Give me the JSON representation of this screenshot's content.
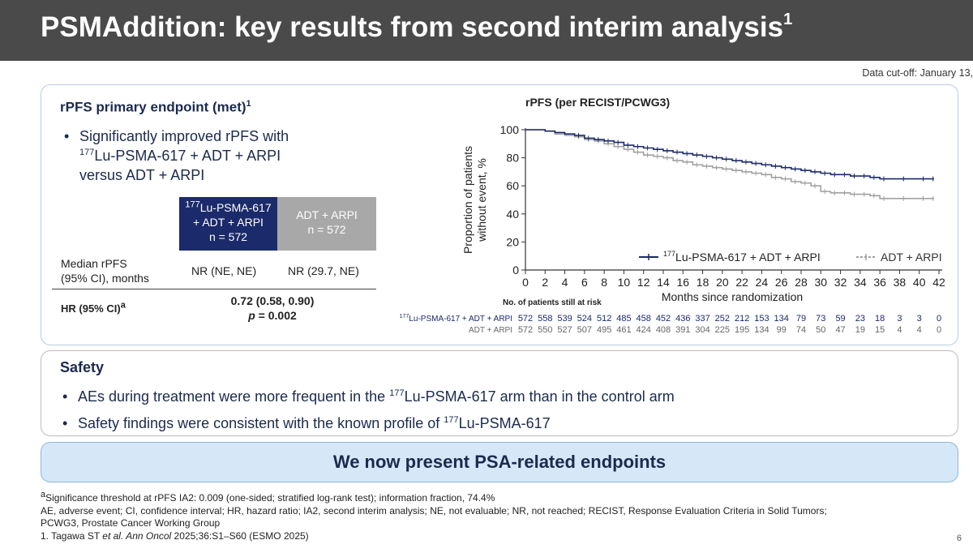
{
  "slide": {
    "title": "PSMAddition: key results from second interim analysis",
    "title_sup": "1",
    "data_cutoff": "Data cut-off: January 13,",
    "page_number": "6"
  },
  "rpfs": {
    "heading": "rPFS primary endpoint (met)",
    "heading_sup": "1",
    "bullet_line1": "Significantly improved rPFS with",
    "bullet_line2_sup": "177",
    "bullet_line2": "Lu-PSMA-617 + ADT + ARPI",
    "bullet_line3": "versus ADT + ARPI"
  },
  "table": {
    "arm1_sup": "177",
    "arm1_line1": "Lu-PSMA-617",
    "arm1_line2": "+ ADT + ARPI",
    "arm1_line3": "n = 572",
    "arm2_line1": "ADT + ARPI",
    "arm2_line2": "n = 572",
    "row1_label1": "Median rPFS",
    "row1_label2": "(95% CI), months",
    "row1_arm1": "NR (NE, NE)",
    "row1_arm2": "NR (29.7, NE)",
    "row2_label": "HR (95% CI)",
    "row2_label_sup": "a",
    "hr_value": "0.72 (0.58, 0.90)",
    "p_label": "p",
    "p_value": " = 0.002"
  },
  "chart_data": {
    "type": "line",
    "title": "rPFS (per RECIST/PCWG3)",
    "xlabel": "Months since randomization",
    "ylabel_line1": "Proportion of patients",
    "ylabel_line2": "without event, %",
    "xlim": [
      0,
      42
    ],
    "ylim": [
      0,
      100
    ],
    "xticks": [
      "0",
      "2",
      "4",
      "6",
      "8",
      "10",
      "12",
      "14",
      "16",
      "18",
      "20",
      "22",
      "24",
      "26",
      "28",
      "30",
      "32",
      "34",
      "36",
      "38",
      "40",
      "42"
    ],
    "yticks": [
      "0",
      "20",
      "40",
      "60",
      "80",
      "100"
    ],
    "legend_position": "bottom-right",
    "series": [
      {
        "name_sup": "177",
        "name": "Lu-PSMA-617 + ADT + ARPI",
        "color": "#1b2a6a",
        "x": [
          0,
          2,
          3,
          4,
          5,
          6,
          7,
          8,
          9,
          10,
          11,
          12,
          13,
          14,
          15,
          16,
          17,
          18,
          19,
          20,
          21,
          22,
          23,
          24,
          25,
          26,
          27,
          28,
          29,
          30,
          31,
          32,
          33,
          34,
          35,
          36,
          38,
          40,
          41
        ],
        "y": [
          100,
          99,
          98,
          97,
          96,
          94,
          93,
          92,
          91,
          89,
          88,
          87,
          86,
          85,
          84,
          83,
          82,
          81,
          80,
          79,
          78,
          77,
          76,
          75,
          74,
          73,
          72,
          71,
          70,
          69,
          68,
          68,
          67,
          67,
          66,
          65,
          65,
          65,
          65
        ]
      },
      {
        "name": "ADT + ARPI",
        "color": "#a0a0a0",
        "x": [
          0,
          2,
          3,
          4,
          5,
          6,
          7,
          8,
          9,
          10,
          11,
          12,
          13,
          14,
          15,
          16,
          17,
          18,
          19,
          20,
          21,
          22,
          23,
          24,
          25,
          26,
          27,
          28,
          29,
          30,
          31,
          32,
          33,
          34,
          35,
          36,
          38,
          40,
          41
        ],
        "y": [
          100,
          99,
          97,
          96,
          95,
          93,
          92,
          90,
          88,
          86,
          84,
          82,
          81,
          80,
          78,
          77,
          75,
          74,
          73,
          72,
          71,
          70,
          69,
          68,
          66,
          65,
          63,
          62,
          60,
          56,
          55,
          55,
          54,
          54,
          53,
          51,
          51,
          51,
          51
        ]
      }
    ],
    "risk_table": {
      "title": "No. of patients still at risk",
      "rows": [
        {
          "label_sup": "177",
          "label": "Lu-PSMA-617 + ADT + ARPI",
          "color": "#1b2a6a",
          "values": [
            "572",
            "558",
            "539",
            "524",
            "512",
            "485",
            "458",
            "452",
            "436",
            "337",
            "252",
            "212",
            "153",
            "134",
            "79",
            "73",
            "59",
            "23",
            "18",
            "3",
            "3",
            "0"
          ]
        },
        {
          "label": "ADT + ARPI",
          "color": "#666666",
          "values": [
            "572",
            "550",
            "527",
            "507",
            "495",
            "461",
            "424",
            "408",
            "391",
            "304",
            "225",
            "195",
            "134",
            "99",
            "74",
            "50",
            "47",
            "19",
            "15",
            "4",
            "4",
            "0"
          ]
        }
      ]
    }
  },
  "safety": {
    "heading": "Safety",
    "bullet1_pre": "AEs during treatment were more frequent in the ",
    "bullet1_sup": "177",
    "bullet1_post": "Lu-PSMA-617 arm than in the control arm",
    "bullet2_pre": "Safety findings were consistent with the known profile of ",
    "bullet2_sup": "177",
    "bullet2_post": "Lu-PSMA-617"
  },
  "banner": {
    "text": "We now present PSA-related endpoints"
  },
  "footnotes": {
    "a_sup": "a",
    "a_text": "Significance threshold at rPFS IA2: 0.009 (one-sided; stratified log-rank test); information fraction, 74.4%",
    "abbrev1": "AE, adverse event; CI, confidence interval; HR, hazard ratio; IA2, second interim analysis; NE, not evaluable; NR, not reached; RECIST, Response Evaluation Criteria in Solid Tumors;",
    "abbrev2": "PCWG3, Prostate Cancer Working Group",
    "ref_pre": "1. Tagawa ST ",
    "ref_em": "et al. Ann Oncol",
    "ref_post": " 2025;36:S1–S60 (ESMO 2025)"
  },
  "colors": {
    "title_bg": "#4a4a4a",
    "navy": "#1b2a6a",
    "control_gray": "#a8a8a8",
    "banner_bg": "#d6e8f7"
  }
}
